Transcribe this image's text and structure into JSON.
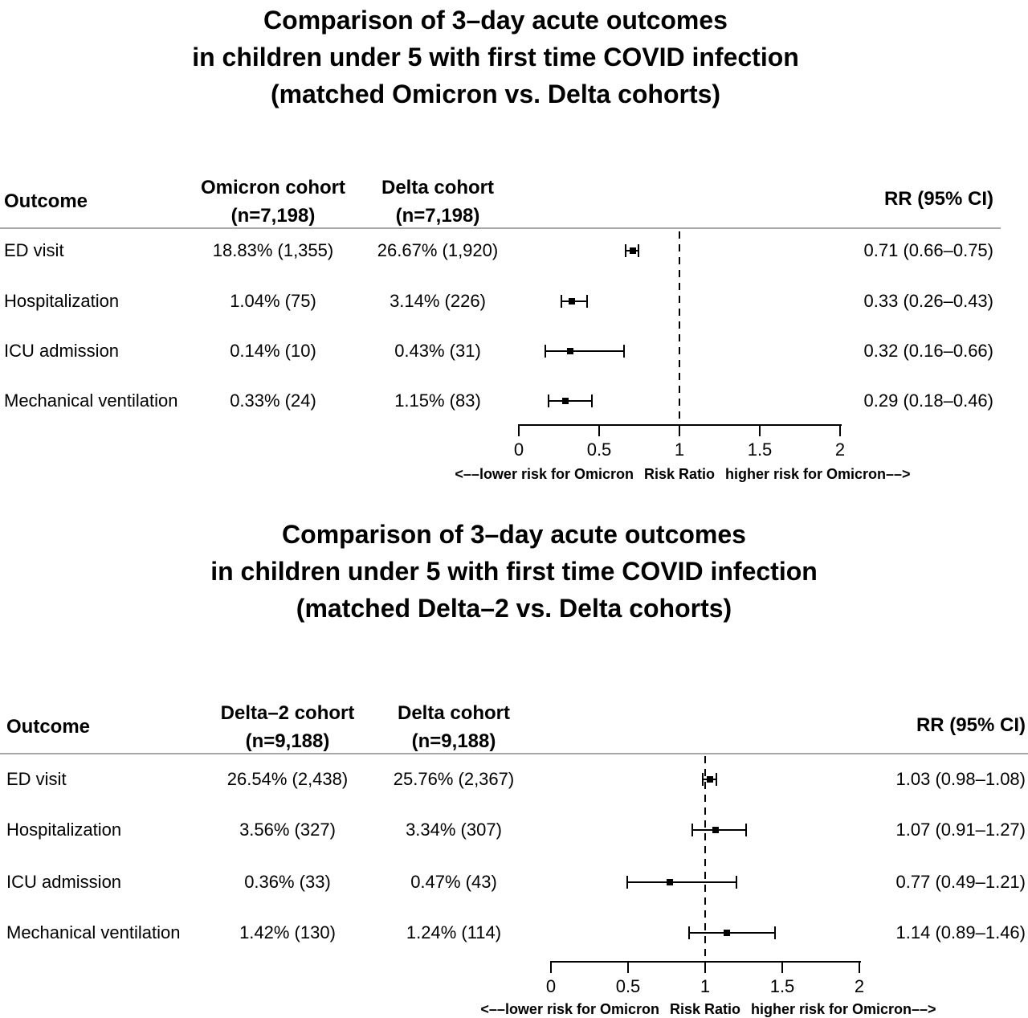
{
  "colors": {
    "text": "#000000",
    "separator": "#a8a8a8",
    "background": "#ffffff"
  },
  "chart_data": [
    {
      "type": "forest",
      "title_lines": [
        "Comparison of 3–day acute outcomes",
        "in children under 5 with first time COVID infection",
        "(matched Omicron vs. Delta cohorts)"
      ],
      "columns": {
        "outcome": "Outcome",
        "cohort1_line1": "Omicron cohort",
        "cohort1_line2": "(n=7,198)",
        "cohort2_line1": "Delta cohort",
        "cohort2_line2": "(n=7,198)",
        "rr": "RR (95% CI)"
      },
      "rows": [
        {
          "outcome": "ED visit",
          "cohort1": "18.83% (1,355)",
          "cohort2": "26.67% (1,920)",
          "rr": 0.71,
          "ci_low": 0.66,
          "ci_high": 0.75,
          "rr_label": "0.71 (0.66–0.75)"
        },
        {
          "outcome": "Hospitalization",
          "cohort1": "1.04% (75)",
          "cohort2": "3.14% (226)",
          "rr": 0.33,
          "ci_low": 0.26,
          "ci_high": 0.43,
          "rr_label": "0.33 (0.26–0.43)"
        },
        {
          "outcome": "ICU admission",
          "cohort1": "0.14% (10)",
          "cohort2": "0.43% (31)",
          "rr": 0.32,
          "ci_low": 0.16,
          "ci_high": 0.66,
          "rr_label": "0.32 (0.16–0.66)"
        },
        {
          "outcome": "Mechanical ventilation",
          "cohort1": "0.33% (24)",
          "cohort2": "1.15% (83)",
          "rr": 0.29,
          "ci_low": 0.18,
          "ci_high": 0.46,
          "rr_label": "0.29 (0.18–0.46)"
        }
      ],
      "axis": {
        "min": 0,
        "max": 2,
        "ticks": [
          0,
          0.5,
          1,
          1.5,
          2
        ],
        "tick_labels": [
          "0",
          "0.5",
          "1",
          "1.5",
          "2"
        ],
        "reference_line": 1,
        "label_left": "<––lower risk for Omicron",
        "label_center": "Risk Ratio",
        "label_right": "higher risk for Omicron––>"
      }
    },
    {
      "type": "forest",
      "title_lines": [
        "Comparison of 3–day acute outcomes",
        "in children under 5 with first time COVID infection",
        "(matched Delta–2 vs. Delta cohorts)"
      ],
      "columns": {
        "outcome": "Outcome",
        "cohort1_line1": "Delta–2 cohort",
        "cohort1_line2": "(n=9,188)",
        "cohort2_line1": "Delta cohort",
        "cohort2_line2": "(n=9,188)",
        "rr": "RR (95% CI)"
      },
      "rows": [
        {
          "outcome": "ED visit",
          "cohort1": "26.54% (2,438)",
          "cohort2": "25.76% (2,367)",
          "rr": 1.03,
          "ci_low": 0.98,
          "ci_high": 1.08,
          "rr_label": "1.03 (0.98–1.08)"
        },
        {
          "outcome": "Hospitalization",
          "cohort1": "3.56% (327)",
          "cohort2": "3.34% (307)",
          "rr": 1.07,
          "ci_low": 0.91,
          "ci_high": 1.27,
          "rr_label": "1.07 (0.91–1.27)"
        },
        {
          "outcome": "ICU admission",
          "cohort1": "0.36% (33)",
          "cohort2": "0.47% (43)",
          "rr": 0.77,
          "ci_low": 0.49,
          "ci_high": 1.21,
          "rr_label": "0.77 (0.49–1.21)"
        },
        {
          "outcome": "Mechanical ventilation",
          "cohort1": "1.42% (130)",
          "cohort2": "1.24% (114)",
          "rr": 1.14,
          "ci_low": 0.89,
          "ci_high": 1.46,
          "rr_label": "1.14 (0.89–1.46)"
        }
      ],
      "axis": {
        "min": 0,
        "max": 2,
        "ticks": [
          0,
          0.5,
          1,
          1.5,
          2
        ],
        "tick_labels": [
          "0",
          "0.5",
          "1",
          "1.5",
          "2"
        ],
        "reference_line": 1,
        "label_left": "<––lower risk for Omicron",
        "label_center": "Risk Ratio",
        "label_right": "higher risk for Omicron––>"
      }
    }
  ]
}
